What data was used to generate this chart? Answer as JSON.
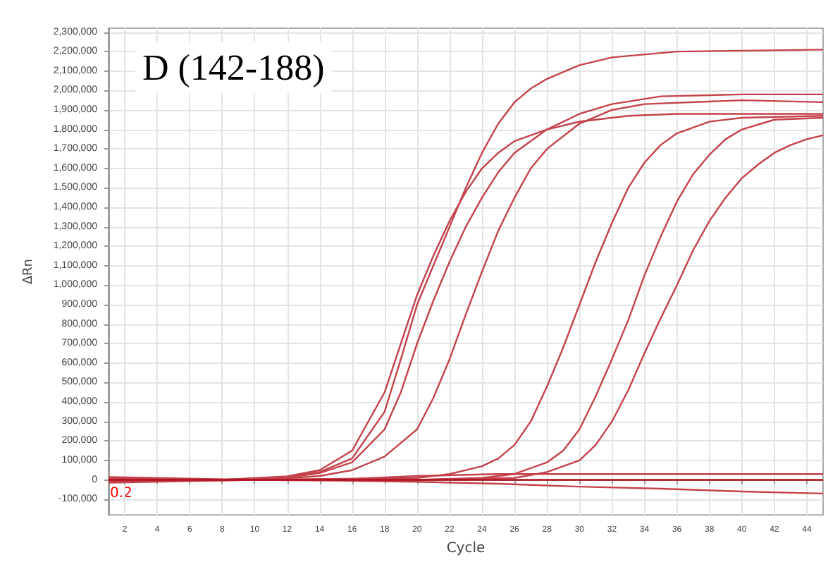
{
  "chart_data": {
    "type": "line",
    "title": "D (142-188)",
    "xlabel": "Cycle",
    "ylabel": "ΔRn",
    "annotations": [
      "0.2"
    ],
    "xlim": [
      1,
      45
    ],
    "xticks": [
      2,
      4,
      6,
      8,
      10,
      12,
      14,
      16,
      18,
      20,
      22,
      24,
      26,
      28,
      30,
      32,
      34,
      36,
      38,
      40,
      42,
      44
    ],
    "ylim": [
      -180000,
      2320000
    ],
    "yticks": [
      {
        "value": -100000,
        "label": "-100,000"
      },
      0,
      {
        "value": 100000,
        "label": "100,000"
      },
      {
        "value": 200000,
        "label": "200,000"
      },
      {
        "value": 300000,
        "label": "300,000"
      },
      {
        "value": 400000,
        "label": "400,000"
      },
      {
        "value": 500000,
        "label": "500,000"
      },
      {
        "value": 600000,
        "label": "600,000"
      },
      {
        "value": 700000,
        "label": "700,000"
      },
      {
        "value": 800000,
        "label": "800,000"
      },
      {
        "value": 900000,
        "label": "900,000"
      },
      {
        "value": 1000000,
        "label": "1,000,000"
      },
      {
        "value": 1100000,
        "label": "1,100,000"
      },
      {
        "value": 1200000,
        "label": "1,200,000"
      },
      {
        "value": 1300000,
        "label": "1,300,000"
      },
      {
        "value": 1400000,
        "label": "1,400,000"
      },
      {
        "value": 1500000,
        "label": "1,500,000"
      },
      {
        "value": 1600000,
        "label": "1,600,000"
      },
      {
        "value": 1700000,
        "label": "1,700,000"
      },
      {
        "value": 1800000,
        "label": "1,800,000"
      },
      {
        "value": 1900000,
        "label": "1,900,000"
      },
      {
        "value": 2000000,
        "label": "2,000,000"
      },
      {
        "value": 2100000,
        "label": "2,100,000"
      },
      {
        "value": 2200000,
        "label": "2,200,000"
      },
      {
        "value": 2300000,
        "label": "2,300,000"
      }
    ],
    "grid": true,
    "marker": "none",
    "line_style": "solid",
    "series": [
      {
        "color": "#c4424a",
        "x": [
          1,
          8,
          12,
          14,
          16,
          18,
          19,
          20,
          21,
          22,
          23,
          24,
          25,
          26,
          27,
          28,
          30,
          32,
          36,
          45
        ],
        "values": [
          0,
          0,
          15000,
          40000,
          110000,
          350000,
          620000,
          900000,
          1100000,
          1300000,
          1500000,
          1680000,
          1830000,
          1940000,
          2010000,
          2060000,
          2130000,
          2170000,
          2200000,
          2210000
        ]
      },
      {
        "color": "#c4424a",
        "x": [
          1,
          8,
          12,
          14,
          16,
          18,
          19,
          20,
          21,
          22,
          23,
          24,
          25,
          26,
          28,
          30,
          33,
          36,
          45
        ],
        "values": [
          10000,
          0,
          18000,
          50000,
          150000,
          450000,
          700000,
          950000,
          1150000,
          1330000,
          1480000,
          1600000,
          1680000,
          1740000,
          1800000,
          1840000,
          1870000,
          1880000,
          1880000
        ]
      },
      {
        "color": "#c4424a",
        "x": [
          1,
          8,
          12,
          14,
          16,
          18,
          19,
          20,
          21,
          22,
          23,
          24,
          25,
          26,
          28,
          30,
          32,
          35,
          40,
          45
        ],
        "values": [
          -5000,
          0,
          12000,
          35000,
          90000,
          260000,
          450000,
          700000,
          920000,
          1120000,
          1300000,
          1450000,
          1580000,
          1680000,
          1800000,
          1880000,
          1930000,
          1970000,
          1980000,
          1980000
        ]
      },
      {
        "color": "#c4424a",
        "x": [
          1,
          8,
          12,
          14,
          16,
          18,
          19,
          20,
          21,
          22,
          23,
          24,
          25,
          26,
          27,
          28,
          30,
          32,
          34,
          40,
          45
        ],
        "values": [
          5000,
          0,
          8000,
          20000,
          50000,
          120000,
          190000,
          260000,
          420000,
          620000,
          850000,
          1070000,
          1280000,
          1450000,
          1600000,
          1700000,
          1830000,
          1900000,
          1930000,
          1950000,
          1940000
        ]
      },
      {
        "color": "#c4424a",
        "x": [
          1,
          10,
          20,
          22,
          24,
          25,
          26,
          27,
          28,
          29,
          30,
          31,
          32,
          33,
          34,
          35,
          36,
          38,
          40,
          45
        ],
        "values": [
          -10000,
          0,
          10000,
          30000,
          70000,
          110000,
          180000,
          300000,
          480000,
          680000,
          900000,
          1120000,
          1320000,
          1500000,
          1630000,
          1720000,
          1780000,
          1840000,
          1860000,
          1870000
        ]
      },
      {
        "color": "#c4424a",
        "x": [
          1,
          10,
          20,
          24,
          26,
          28,
          29,
          30,
          31,
          32,
          33,
          34,
          35,
          36,
          37,
          38,
          39,
          40,
          42,
          45
        ],
        "values": [
          15000,
          0,
          0,
          10000,
          30000,
          90000,
          150000,
          260000,
          430000,
          620000,
          820000,
          1050000,
          1250000,
          1430000,
          1570000,
          1670000,
          1750000,
          1800000,
          1850000,
          1860000
        ]
      },
      {
        "color": "#c4424a",
        "x": [
          1,
          10,
          20,
          26,
          28,
          30,
          31,
          32,
          33,
          34,
          35,
          36,
          37,
          38,
          39,
          40,
          41,
          42,
          43,
          44,
          45
        ],
        "values": [
          -15000,
          0,
          0,
          10000,
          40000,
          100000,
          180000,
          300000,
          460000,
          650000,
          830000,
          1000000,
          1180000,
          1330000,
          1450000,
          1550000,
          1620000,
          1680000,
          1720000,
          1750000,
          1770000
        ]
      },
      {
        "color": "#c4424a",
        "x": [
          1,
          10,
          16,
          20,
          25,
          30,
          35,
          40,
          45
        ],
        "values": [
          0,
          0,
          5000,
          20000,
          30000,
          30000,
          30000,
          30000,
          30000
        ]
      },
      {
        "color": "#c4424a",
        "x": [
          1,
          10,
          16,
          20,
          25,
          30,
          35,
          40,
          45
        ],
        "values": [
          0,
          0,
          -5000,
          -10000,
          -20000,
          -35000,
          -45000,
          -60000,
          -70000
        ]
      },
      {
        "color": "#b0101c",
        "x": [
          1,
          10,
          20,
          30,
          40,
          45
        ],
        "values": [
          0,
          0,
          0,
          0,
          0,
          0
        ]
      }
    ]
  }
}
